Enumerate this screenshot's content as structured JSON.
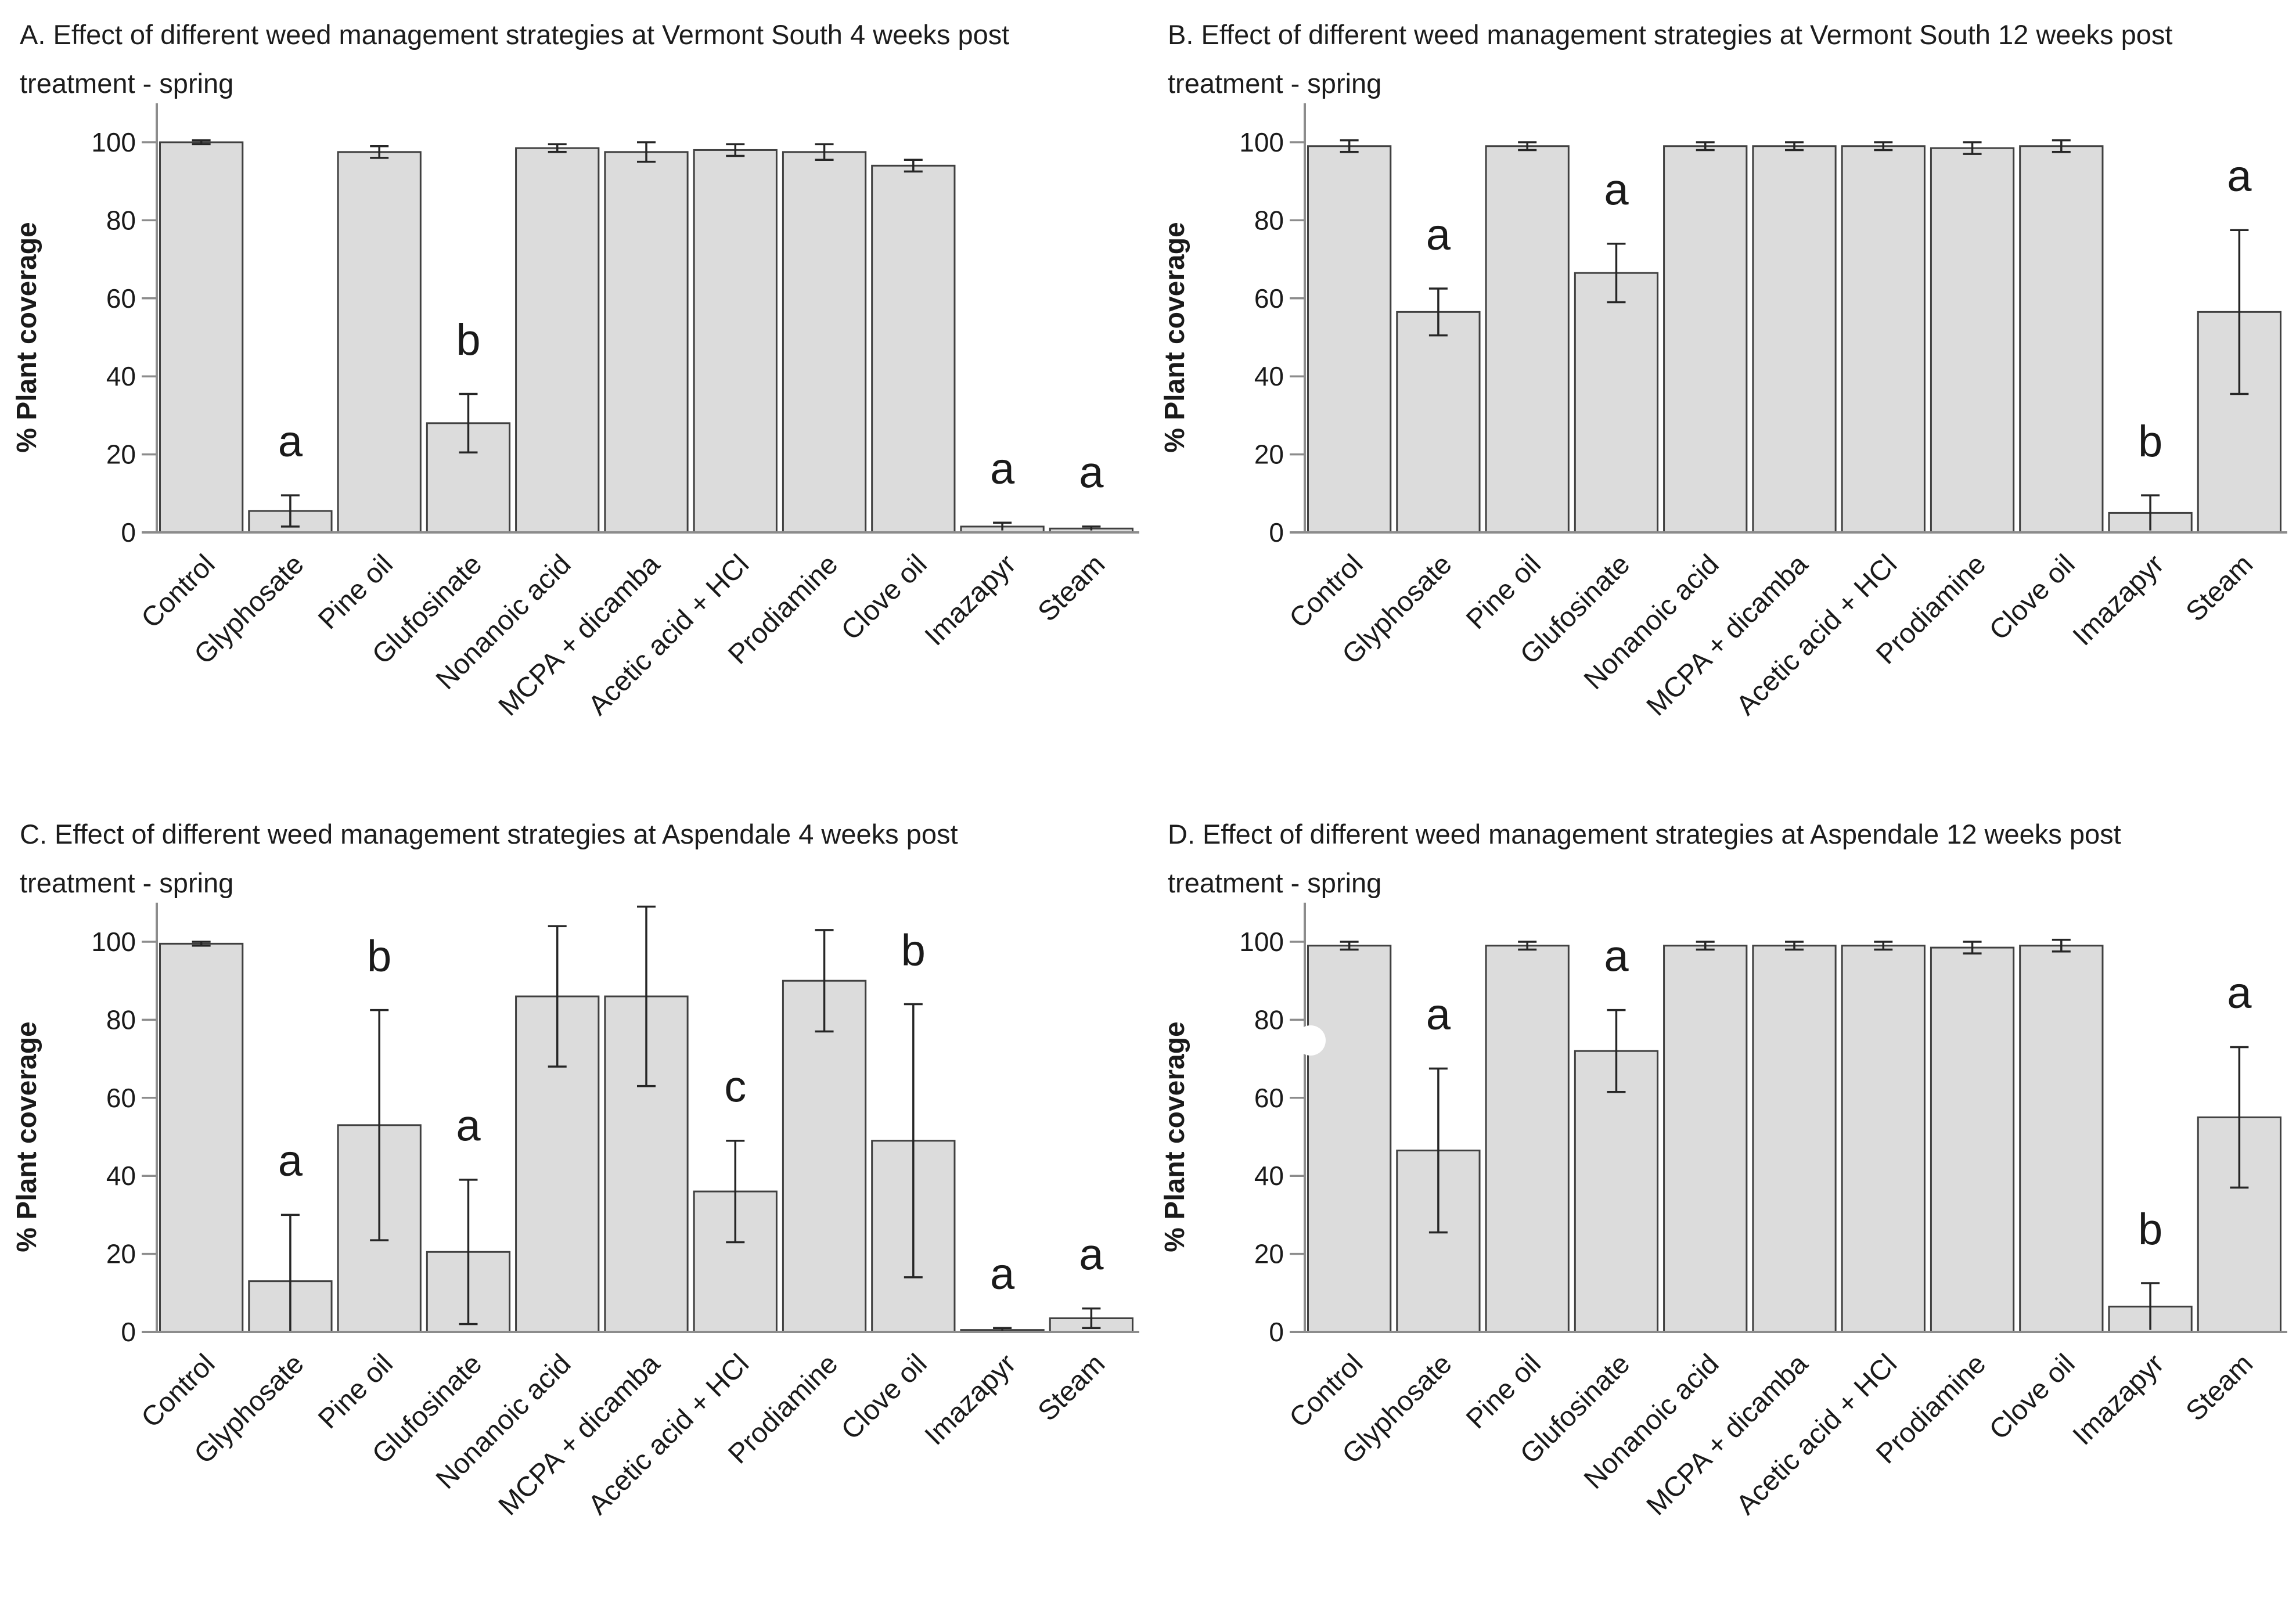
{
  "figure": {
    "background": "#ffffff",
    "ylabel": "% Plant coverage"
  },
  "style": {
    "bar_fill": "#dcdcdc",
    "bar_stroke": "#404040",
    "axis_color": "#8c8c8c",
    "error_color": "#262626",
    "text_color": "#1a1a1a",
    "letter_color": "#1a1a1a"
  },
  "chart_data": [
    {
      "type": "bar",
      "panel": "A",
      "title": "A. Effect of different weed management strategies at Vermont South 4 weeks post treatment - spring",
      "title_lines": [
        "A. Effect of different weed management strategies at Vermont South 4 weeks post",
        "treatment - spring"
      ],
      "categories": [
        "Control",
        "Glyphosate",
        "Pine oil",
        "Glufosinate",
        "Nonanoic acid",
        "MCPA + dicamba",
        "Acetic acid + HCl",
        "Prodiamine",
        "Clove oil",
        "Imazapyr",
        "Steam"
      ],
      "values": [
        100,
        5.5,
        97.5,
        28,
        98.5,
        97.5,
        98,
        97.5,
        94,
        1.5,
        1
      ],
      "errors": [
        0.5,
        4,
        1.5,
        7.5,
        1,
        2.5,
        1.5,
        2,
        1.5,
        1,
        0.5
      ],
      "sig_letters": [
        "",
        "a",
        "",
        "b",
        "",
        "",
        "",
        "",
        "",
        "a",
        "a"
      ],
      "xlabel": "",
      "ylabel": "% Plant coverage",
      "ylim": [
        0,
        110
      ],
      "yticks": [
        0,
        20,
        40,
        60,
        80,
        100
      ],
      "grid": false,
      "legend": false
    },
    {
      "type": "bar",
      "panel": "B",
      "title": "B. Effect of different weed management strategies at Vermont South 12 weeks post treatment - spring",
      "title_lines": [
        "B. Effect of different weed management strategies at Vermont South 12 weeks post",
        "treatment - spring"
      ],
      "categories": [
        "Control",
        "Glyphosate",
        "Pine oil",
        "Glufosinate",
        "Nonanoic acid",
        "MCPA + dicamba",
        "Acetic acid + HCl",
        "Prodiamine",
        "Clove oil",
        "Imazapyr",
        "Steam"
      ],
      "values": [
        99,
        56.5,
        99,
        66.5,
        99,
        99,
        99,
        98.5,
        99,
        5,
        56.5
      ],
      "errors": [
        1.5,
        6,
        1,
        7.5,
        1,
        1,
        1,
        1.5,
        1.5,
        4.5,
        21
      ],
      "sig_letters": [
        "",
        "a",
        "",
        "a",
        "",
        "",
        "",
        "",
        "",
        "b",
        "a"
      ],
      "xlabel": "",
      "ylabel": "% Plant coverage",
      "ylim": [
        0,
        110
      ],
      "yticks": [
        0,
        20,
        40,
        60,
        80,
        100
      ],
      "grid": false,
      "legend": false
    },
    {
      "type": "bar",
      "panel": "C",
      "title": "C. Effect of different weed management strategies at Aspendale 4 weeks post treatment - spring",
      "title_lines": [
        "C. Effect of different weed management strategies at Aspendale 4 weeks post",
        "treatment - spring"
      ],
      "categories": [
        "Control",
        "Glyphosate",
        "Pine oil",
        "Glufosinate",
        "Nonanoic acid",
        "MCPA + dicamba",
        "Acetic acid + HCl",
        "Prodiamine",
        "Clove oil",
        "Imazapyr",
        "Steam"
      ],
      "values": [
        99.5,
        13,
        53,
        20.5,
        86,
        86,
        36,
        90,
        49,
        0.5,
        3.5
      ],
      "errors": [
        0.5,
        17,
        29.5,
        18.5,
        18,
        23,
        13,
        13,
        35,
        0.5,
        2.5
      ],
      "sig_letters": [
        "",
        "a",
        "b",
        "a",
        "",
        "",
        "c",
        "",
        "b",
        "a",
        "a"
      ],
      "xlabel": "",
      "ylabel": "% Plant coverage",
      "ylim": [
        0,
        110
      ],
      "yticks": [
        0,
        20,
        40,
        60,
        80,
        100
      ],
      "grid": false,
      "legend": false
    },
    {
      "type": "bar",
      "panel": "D",
      "title": "D. Effect of different weed management strategies at Aspendale 12 weeks post treatment - spring",
      "title_lines": [
        "D. Effect of different weed management strategies at Aspendale 12 weeks post",
        "treatment - spring"
      ],
      "categories": [
        "Control",
        "Glyphosate",
        "Pine oil",
        "Glufosinate",
        "Nonanoic acid",
        "MCPA + dicamba",
        "Acetic acid + HCl",
        "Prodiamine",
        "Clove oil",
        "Imazapyr",
        "Steam"
      ],
      "values": [
        99,
        46.5,
        99,
        72,
        99,
        99,
        99,
        98.5,
        99,
        6.5,
        55
      ],
      "errors": [
        1,
        21,
        1,
        10.5,
        1,
        1,
        1,
        1.5,
        1.5,
        6,
        18
      ],
      "sig_letters": [
        "",
        "a",
        "",
        "a",
        "",
        "",
        "",
        "",
        "",
        "b",
        "a"
      ],
      "xlabel": "",
      "ylabel": "% Plant coverage",
      "ylim": [
        0,
        110
      ],
      "yticks": [
        0,
        20,
        40,
        60,
        80,
        100
      ],
      "grid": false,
      "legend": false,
      "white_dot": {
        "x": 280,
        "y": 243,
        "r": 26
      }
    }
  ]
}
